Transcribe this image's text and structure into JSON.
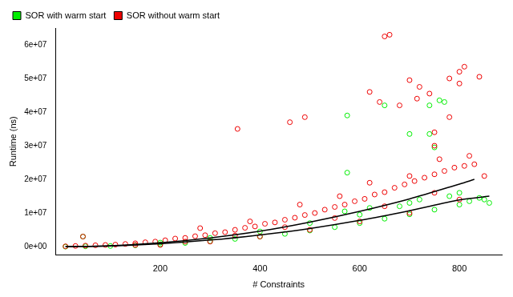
{
  "chart_data": {
    "type": "scatter",
    "x_label": "# Constraints",
    "y_label": "Runtime (ns)",
    "xlim": [
      -10,
      885
    ],
    "ylim": [
      -2500000,
      65000000
    ],
    "xticks": [
      200,
      400,
      600,
      800
    ],
    "yticks": [
      {
        "value": 0,
        "label": "0e+00"
      },
      {
        "value": 10000000,
        "label": "1e+07"
      },
      {
        "value": 20000000,
        "label": "2e+07"
      },
      {
        "value": 30000000,
        "label": "3e+07"
      },
      {
        "value": 40000000,
        "label": "4e+07"
      },
      {
        "value": 50000000,
        "label": "5e+07"
      },
      {
        "value": 60000000,
        "label": "6e+07"
      }
    ],
    "grid": false,
    "legend": "top-left",
    "series": [
      {
        "name": "SOR with warm start",
        "color": "#00ee00",
        "marker": "circle",
        "x": [
          10,
          45,
          50,
          100,
          150,
          200,
          250,
          300,
          350,
          400,
          450,
          500,
          550,
          600,
          650,
          700,
          750,
          800,
          850,
          860,
          200,
          300,
          400,
          500,
          600,
          700,
          800,
          575,
          650,
          760,
          770,
          740,
          575,
          700,
          740,
          750,
          570,
          620,
          680,
          720,
          780,
          820,
          840
        ],
        "values": [
          0,
          3000000,
          100000,
          200000,
          400000,
          700000,
          1100000,
          1600000,
          2300000,
          3000000,
          3800000,
          4800000,
          5800000,
          7000000,
          8300000,
          9600000,
          11000000,
          12500000,
          14000000,
          13000000,
          1200000,
          2600000,
          4500000,
          7000000,
          9500000,
          13000000,
          16000000,
          39000000,
          42000000,
          43500000,
          43000000,
          42000000,
          22000000,
          33500000,
          33500000,
          29500000,
          10500000,
          11500000,
          12000000,
          14000000,
          15000000,
          13500000,
          14500000
        ]
      },
      {
        "name": "SOR without warm start",
        "color": "#ee0000",
        "marker": "circle",
        "x": [
          10,
          30,
          50,
          70,
          90,
          110,
          130,
          150,
          170,
          190,
          210,
          230,
          250,
          270,
          290,
          310,
          330,
          350,
          370,
          390,
          410,
          430,
          450,
          470,
          490,
          510,
          530,
          550,
          570,
          590,
          610,
          630,
          650,
          670,
          690,
          710,
          730,
          750,
          770,
          790,
          810,
          830,
          200,
          300,
          400,
          500,
          600,
          700,
          800,
          150,
          250,
          350,
          450,
          550,
          650,
          750,
          850,
          280,
          380,
          480,
          560,
          620,
          700,
          760,
          820,
          45,
          355,
          460,
          490,
          620,
          650,
          660,
          640,
          700,
          720,
          740,
          780,
          800,
          810,
          840,
          800,
          780,
          750,
          750,
          680,
          715
        ],
        "values": [
          100000,
          200000,
          300000,
          400000,
          500000,
          600000,
          800000,
          1000000,
          1300000,
          1500000,
          1900000,
          2400000,
          2600000,
          3100000,
          3400000,
          4000000,
          4300000,
          5000000,
          5600000,
          6000000,
          6800000,
          7200000,
          8000000,
          8600000,
          9400000,
          10000000,
          11000000,
          11800000,
          12500000,
          13500000,
          14200000,
          15500000,
          16200000,
          17500000,
          18500000,
          19500000,
          20500000,
          21500000,
          22500000,
          23500000,
          24000000,
          24500000,
          500000,
          1500000,
          3000000,
          5000000,
          7500000,
          10000000,
          14000000,
          500000,
          1500000,
          3300000,
          5800000,
          8500000,
          12000000,
          16000000,
          21000000,
          5500000,
          7500000,
          12500000,
          15000000,
          19000000,
          21000000,
          26000000,
          27000000,
          3000000,
          35000000,
          37000000,
          38500000,
          46000000,
          62500000,
          63000000,
          43000000,
          49500000,
          47500000,
          45500000,
          50000000,
          52000000,
          53500000,
          50500000,
          48500000,
          38500000,
          34000000,
          30000000,
          42000000,
          44000000
        ]
      },
      {
        "type": "line",
        "color": "#000000",
        "line_style": "solid",
        "x": [
          10,
          100,
          200,
          300,
          400,
          500,
          600,
          700,
          800,
          830
        ],
        "values": [
          3000,
          290000,
          1160000,
          2600000,
          4600000,
          7300000,
          10500000,
          14200000,
          18600000,
          20000000
        ]
      },
      {
        "type": "line",
        "color": "#000000",
        "line_style": "solid",
        "x": [
          10,
          100,
          200,
          300,
          400,
          500,
          600,
          700,
          800,
          860
        ],
        "values": [
          2000,
          220000,
          870000,
          1960000,
          3500000,
          5400000,
          7800000,
          10700000,
          13900000,
          15000000
        ]
      }
    ]
  }
}
